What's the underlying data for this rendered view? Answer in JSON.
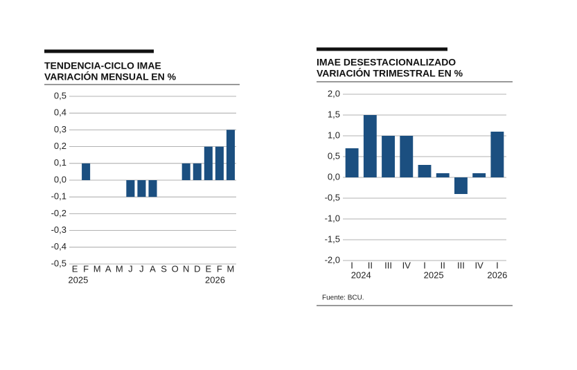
{
  "chart_data": [
    {
      "type": "bar",
      "title": "TENDENCIA-CICLO IMAE",
      "subtitle": "VARIACIÓN MENSUAL EN %",
      "categories": [
        "E",
        "F",
        "M",
        "A",
        "M",
        "J",
        "J",
        "A",
        "S",
        "O",
        "N",
        "D",
        "E",
        "F",
        "M"
      ],
      "values": [
        0,
        0.1,
        0,
        0,
        0,
        -0.1,
        -0.1,
        -0.1,
        0,
        0,
        0.1,
        0.1,
        0.2,
        0.2,
        0.3
      ],
      "x_groups": [
        {
          "label": "2025",
          "start": 0
        },
        {
          "label": "2026",
          "start": 12
        }
      ],
      "color": "#1b4f80",
      "ylim": [
        -0.5,
        0.5
      ],
      "grid": true,
      "yticks": [
        {
          "value": -0.5,
          "label": "-0,5"
        },
        {
          "value": -0.4,
          "label": "-0,4"
        },
        {
          "value": -0.3,
          "label": "-0,3"
        },
        {
          "value": -0.2,
          "label": "-0,2"
        },
        {
          "value": -0.1,
          "label": "-0,1"
        },
        {
          "value": 0,
          "label": "0,0"
        },
        {
          "value": 0.1,
          "label": "0,1"
        },
        {
          "value": 0.2,
          "label": "0,2"
        },
        {
          "value": 0.3,
          "label": "0,3"
        },
        {
          "value": 0.4,
          "label": "0,4"
        },
        {
          "value": 0.5,
          "label": "0,5"
        }
      ]
    },
    {
      "type": "bar",
      "title": "IMAE DESESTACIONALIZADO",
      "subtitle": "VARIACIÓN TRIMESTRAL EN %",
      "categories": [
        "I",
        "II",
        "III",
        "IV",
        "I",
        "II",
        "III",
        "IV",
        "I"
      ],
      "values": [
        0.7,
        1.5,
        1.0,
        1.0,
        0.3,
        0.1,
        -0.4,
        0.1,
        1.1
      ],
      "x_groups": [
        {
          "label": "2024",
          "start": 0
        },
        {
          "label": "2025",
          "start": 4
        },
        {
          "label": "2026",
          "start": 8
        }
      ],
      "color": "#1b4f80",
      "ylim": [
        -2,
        2
      ],
      "grid": true,
      "yticks": [
        {
          "value": -2,
          "label": "-2,0"
        },
        {
          "value": -1.5,
          "label": "-1,5"
        },
        {
          "value": -1,
          "label": "-1,0"
        },
        {
          "value": -0.5,
          "label": "-0,5"
        },
        {
          "value": 0,
          "label": "0,0"
        },
        {
          "value": 0.5,
          "label": "0,5"
        },
        {
          "value": 1,
          "label": "1,0"
        },
        {
          "value": 1.5,
          "label": "1,5"
        },
        {
          "value": 2,
          "label": "2,0"
        }
      ],
      "source": "Fuente: BCU."
    }
  ]
}
